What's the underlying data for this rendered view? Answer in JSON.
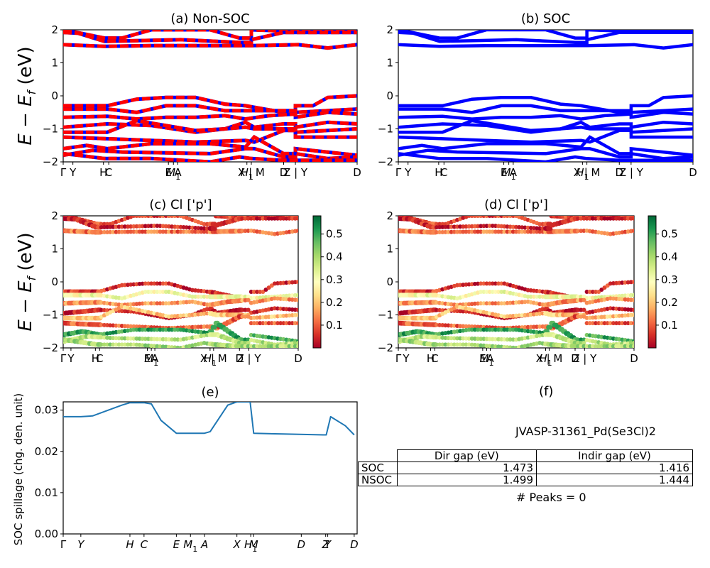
{
  "chart_data": [
    {
      "id": "a",
      "type": "line",
      "title": "(a) Non-SOC",
      "ylabel": "E − E_f (eV)",
      "ylim": [
        -2,
        2
      ],
      "yticks": [
        -2,
        -1,
        0,
        1,
        2
      ],
      "xticks": [
        "Γ",
        "Y",
        "H",
        "C",
        "E",
        "M1",
        "A",
        "H1",
        "X | M",
        "D",
        "Z | Y",
        "D"
      ],
      "xtick_pos": [
        0.0,
        0.033,
        0.137,
        0.155,
        0.358,
        0.375,
        0.39,
        0.625,
        0.64,
        0.75,
        0.79,
        1.0
      ],
      "series_colors": [
        "#ff0000",
        "#0000ff"
      ],
      "style": "dashed red/blue overlay",
      "bands_approx": [
        {
          "segment": 0,
          "values": [
            1.95,
            1.95,
            1.75,
            1.75,
            1.95,
            2.0
          ]
        },
        {
          "segment": 0,
          "values": [
            1.55,
            1.55,
            1.5,
            1.5,
            1.52,
            1.52
          ]
        },
        {
          "segment": 0,
          "values": [
            1.92,
            1.85,
            1.65,
            1.65,
            1.7,
            1.7
          ]
        },
        {
          "segment": 0,
          "values": [
            -0.3,
            -0.3,
            -0.3,
            -0.25,
            -0.05,
            -0.05
          ]
        },
        {
          "segment": 0,
          "values": [
            -0.4,
            -0.4,
            -0.4,
            -0.4,
            -0.3,
            -0.3
          ]
        },
        {
          "segment": 0,
          "values": [
            -0.65,
            -0.62,
            -0.6,
            -0.6,
            -0.75,
            -0.75
          ]
        },
        {
          "segment": 0,
          "values": [
            -0.95,
            -0.9,
            -0.8,
            -0.8,
            -1.0,
            -1.1
          ]
        },
        {
          "segment": 0,
          "values": [
            -1.1,
            -1.1,
            -1.0,
            -1.0,
            -1.1,
            -1.1
          ]
        },
        {
          "segment": 0,
          "values": [
            -1.25,
            -1.25,
            -1.35,
            -1.35,
            -1.4,
            -1.4
          ]
        },
        {
          "segment": 0,
          "values": [
            -1.6,
            -1.6,
            -1.6,
            -1.6,
            -1.45,
            -1.45
          ]
        },
        {
          "segment": 0,
          "values": [
            -1.8,
            -1.75,
            -1.6,
            -1.6,
            -1.7,
            -1.75
          ]
        },
        {
          "segment": 0,
          "values": [
            -1.65,
            -1.5,
            -1.9,
            -1.9,
            -1.95,
            -2.0
          ]
        }
      ]
    },
    {
      "id": "b",
      "type": "line",
      "title": "(b) SOC",
      "ylim": [
        -2,
        2
      ],
      "yticks": [
        -2,
        -1,
        0,
        1,
        2
      ],
      "xticks": [
        "Γ",
        "Y",
        "H",
        "C",
        "E",
        "M1",
        "A",
        "H1",
        "X | M",
        "D",
        "Z | Y",
        "D"
      ],
      "xtick_pos": [
        0.0,
        0.033,
        0.137,
        0.155,
        0.358,
        0.375,
        0.39,
        0.625,
        0.64,
        0.75,
        0.79,
        1.0
      ],
      "series_colors": [
        "#0000ff"
      ]
    },
    {
      "id": "c",
      "type": "scatter",
      "title": "(c)  Cl ['p']",
      "ylabel": "E − E_f (eV)",
      "ylim": [
        -2,
        2
      ],
      "yticks": [
        -2,
        -1,
        0,
        1,
        2
      ],
      "xticks": [
        "Γ",
        "Y",
        "H",
        "C",
        "E",
        "M1",
        "A",
        "H1",
        "X | M",
        "D",
        "Z | Y",
        "D"
      ],
      "xtick_pos": [
        0.0,
        0.033,
        0.137,
        0.155,
        0.358,
        0.375,
        0.39,
        0.625,
        0.64,
        0.75,
        0.79,
        1.0
      ],
      "colorbar": {
        "colormap": "RdYlGn",
        "ticks": [
          0.1,
          0.2,
          0.3,
          0.4,
          0.5
        ],
        "range": [
          0.0,
          0.58
        ]
      }
    },
    {
      "id": "d",
      "type": "scatter",
      "title": "(d) Cl ['p']",
      "ylim": [
        -2,
        2
      ],
      "yticks": [
        -2,
        -1,
        0,
        1,
        2
      ],
      "xticks": [
        "Γ",
        "Y",
        "H",
        "C",
        "E",
        "M1",
        "A",
        "H1",
        "X | M",
        "D",
        "Z | Y",
        "D"
      ],
      "xtick_pos": [
        0.0,
        0.033,
        0.137,
        0.155,
        0.358,
        0.375,
        0.39,
        0.625,
        0.64,
        0.75,
        0.79,
        1.0
      ],
      "colorbar": {
        "colormap": "RdYlGn",
        "ticks": [
          0.1,
          0.2,
          0.3,
          0.4,
          0.5
        ],
        "range": [
          0.0,
          0.58
        ]
      }
    },
    {
      "id": "e",
      "type": "line",
      "title": "(e)",
      "ylabel": "SOC spillage (chg. den. unit)",
      "ylim": [
        0.0,
        0.032
      ],
      "yticks": [
        0.0,
        0.01,
        0.02,
        0.03
      ],
      "xticks": [
        "Γ",
        "Y",
        "H",
        "C",
        "E",
        "M1",
        "A",
        "X",
        "H1",
        "M",
        "D",
        "Z",
        "Y",
        "D"
      ],
      "xtick_pos": [
        0.0,
        0.06,
        0.227,
        0.275,
        0.385,
        0.433,
        0.481,
        0.591,
        0.638,
        0.648,
        0.81,
        0.893,
        0.9,
        0.99
      ],
      "color": "#1f77b4",
      "x": [
        0.0,
        0.06,
        0.1,
        0.2,
        0.227,
        0.275,
        0.3,
        0.333,
        0.385,
        0.45,
        0.481,
        0.5,
        0.56,
        0.591,
        0.636,
        0.648,
        0.75,
        0.885,
        0.895,
        0.91,
        0.96,
        0.99
      ],
      "y": [
        0.0284,
        0.0284,
        0.0286,
        0.0312,
        0.0318,
        0.0318,
        0.0315,
        0.0275,
        0.0244,
        0.0244,
        0.0244,
        0.0248,
        0.0312,
        0.032,
        0.032,
        0.0244,
        0.0242,
        0.024,
        0.024,
        0.0284,
        0.0262,
        0.024
      ]
    }
  ],
  "panel_f": {
    "title": "(f)",
    "material": "JVASP-31361_Pd(Se3Cl)2",
    "table": {
      "headers": [
        "",
        "Dir gap (eV)",
        "Indir gap (eV)"
      ],
      "rows": [
        {
          "label": "SOC",
          "dir": "1.473",
          "indir": "1.416"
        },
        {
          "label": "NSOC",
          "dir": "1.499",
          "indir": "1.444"
        }
      ]
    },
    "peaks_text": "# Peaks = 0"
  }
}
